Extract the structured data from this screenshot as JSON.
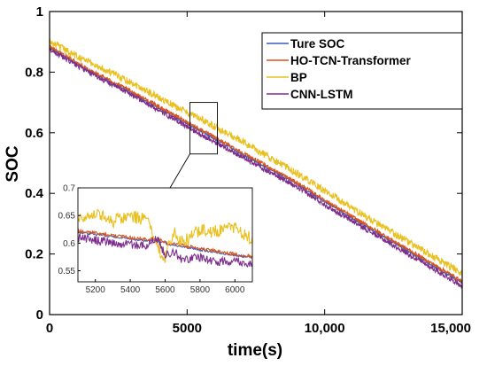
{
  "chart_data": {
    "type": "line",
    "title": "",
    "xlabel": "time(s)",
    "ylabel": "SOC",
    "xlim": [
      0,
      15000
    ],
    "ylim": [
      0,
      1
    ],
    "x_ticks": [
      0,
      5000,
      10000,
      15000
    ],
    "x_tick_labels": [
      "0",
      "5000",
      "10,000",
      "15,000"
    ],
    "y_ticks": [
      0,
      0.2,
      0.4,
      0.6,
      0.8,
      1
    ],
    "y_tick_labels": [
      "0",
      "0.2",
      "0.4",
      "0.6",
      "0.8",
      "1"
    ],
    "grid": false,
    "legend_position": "top-right",
    "x": [
      0,
      1500,
      3000,
      4500,
      5500,
      6000,
      7500,
      9000,
      10500,
      12000,
      13500,
      15000
    ],
    "series": [
      {
        "name": "Ture SOC",
        "color": "#3a5bbf",
        "values": [
          0.88,
          0.8,
          0.73,
          0.655,
          0.605,
          0.58,
          0.505,
          0.43,
          0.345,
          0.265,
          0.185,
          0.105
        ]
      },
      {
        "name": "HO-TCN-Transformer",
        "color": "#d9541a",
        "values": [
          0.885,
          0.805,
          0.735,
          0.66,
          0.61,
          0.585,
          0.51,
          0.435,
          0.35,
          0.27,
          0.19,
          0.11
        ]
      },
      {
        "name": "BP",
        "color": "#e8c020",
        "values": [
          0.9,
          0.83,
          0.765,
          0.69,
          0.645,
          0.62,
          0.545,
          0.465,
          0.38,
          0.295,
          0.215,
          0.135
        ]
      },
      {
        "name": "CNN-LSTM",
        "color": "#7e2f8e",
        "values": [
          0.875,
          0.795,
          0.725,
          0.645,
          0.595,
          0.57,
          0.495,
          0.42,
          0.335,
          0.255,
          0.175,
          0.095
        ]
      }
    ],
    "inset": {
      "xlim": [
        5100,
        6100
      ],
      "ylim": [
        0.53,
        0.7
      ],
      "x_ticks": [
        5200,
        5400,
        5600,
        5800,
        6000
      ],
      "x_tick_labels": [
        "5200",
        "5400",
        "5600",
        "5800",
        "6000"
      ],
      "y_ticks": [
        0.55,
        0.6,
        0.65,
        0.7
      ],
      "y_tick_labels": [
        "0.55",
        "0.6",
        "0.65",
        "0.7"
      ],
      "x": [
        5100,
        5200,
        5300,
        5400,
        5500,
        5550,
        5600,
        5650,
        5700,
        5800,
        5900,
        6000,
        6100
      ],
      "series": [
        {
          "name": "Ture SOC",
          "values": [
            0.62,
            0.616,
            0.612,
            0.608,
            0.604,
            0.605,
            0.6,
            0.596,
            0.594,
            0.588,
            0.583,
            0.578,
            0.574
          ]
        },
        {
          "name": "HO-TCN-Transformer",
          "values": [
            0.622,
            0.618,
            0.614,
            0.61,
            0.606,
            0.608,
            0.602,
            0.598,
            0.596,
            0.59,
            0.585,
            0.58,
            0.576
          ]
        },
        {
          "name": "BP",
          "values": [
            0.645,
            0.655,
            0.64,
            0.65,
            0.64,
            0.595,
            0.575,
            0.62,
            0.6,
            0.625,
            0.62,
            0.63,
            0.605
          ]
        },
        {
          "name": "CNN-LSTM",
          "values": [
            0.61,
            0.605,
            0.6,
            0.598,
            0.593,
            0.61,
            0.58,
            0.585,
            0.57,
            0.575,
            0.565,
            0.57,
            0.56
          ]
        }
      ]
    }
  }
}
